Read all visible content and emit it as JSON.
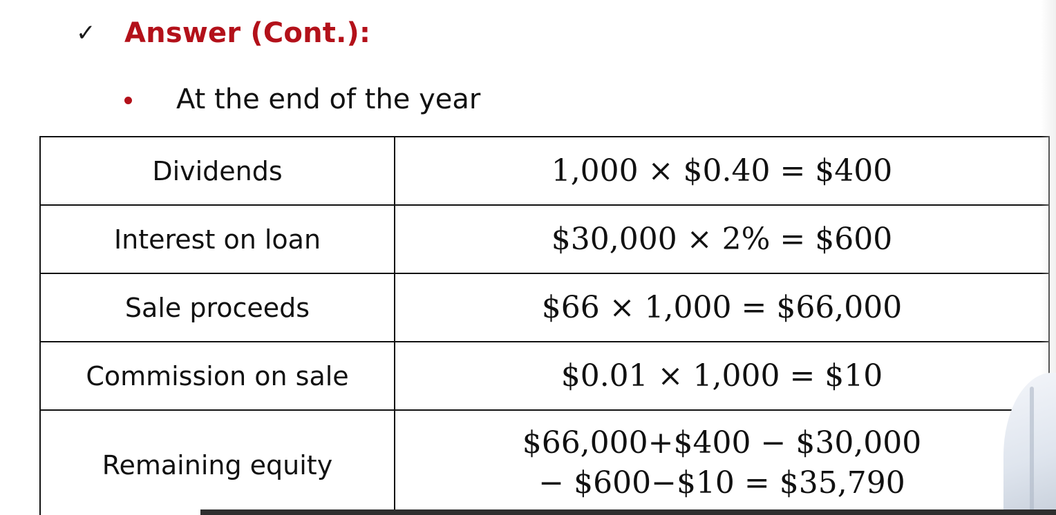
{
  "header": {
    "check_icon": "✓",
    "title": "Answer (Cont.):",
    "accent_color": "#b3111a"
  },
  "bullet": {
    "text": "At the end of the year"
  },
  "table": {
    "rows": [
      {
        "label": "Dividends",
        "formula": [
          "1,000 × $0.40 = $400"
        ]
      },
      {
        "label": "Interest on loan",
        "formula": [
          "$30,000 × 2% = $600"
        ]
      },
      {
        "label": "Sale proceeds",
        "formula": [
          "$66 × 1,000 = $66,000"
        ]
      },
      {
        "label": "Commission on sale",
        "formula": [
          "$0.01 × 1,000 = $10"
        ]
      },
      {
        "label": "Remaining equity",
        "formula": [
          "$66,000+$400 − $30,000",
          "− $600−$10 = $35,790"
        ]
      }
    ]
  }
}
